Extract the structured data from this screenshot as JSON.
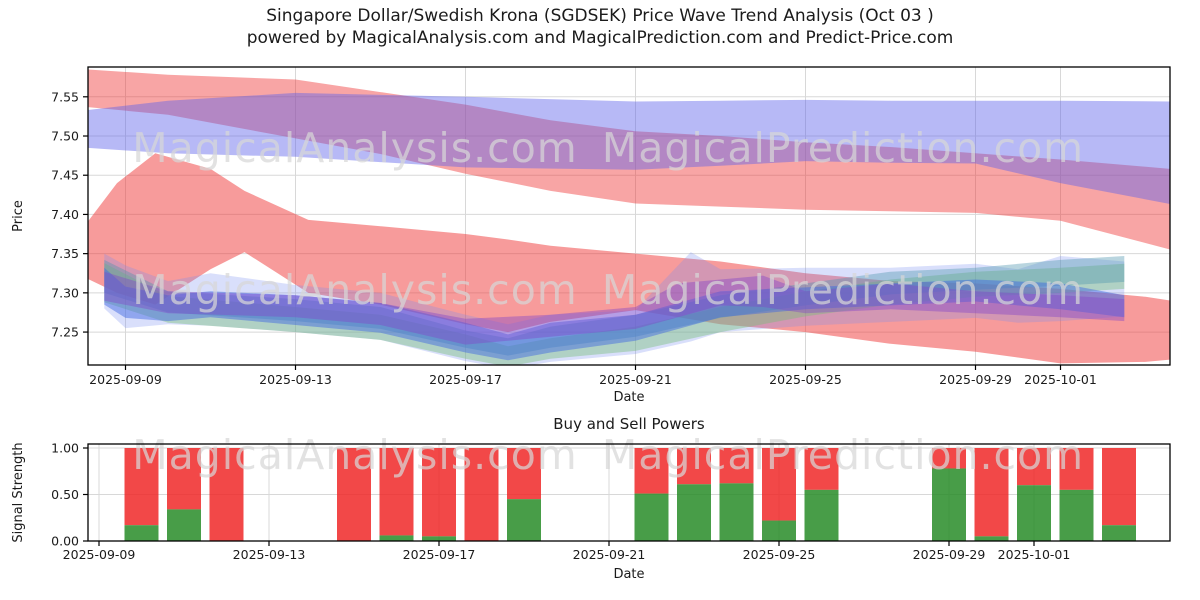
{
  "title": {
    "line1": "Singapore Dollar/Swedish Krona (SGDSEK) Price Wave Trend Analysis (Oct 03 )",
    "line2": "powered by MagicalAnalysis.com and MagicalPrediction.com and Predict-Price.com"
  },
  "watermarks": [
    "MagicalAnalysis.com",
    "MagicalPrediction.com"
  ],
  "watermark_color": "rgba(215,215,215,0.72)",
  "colors": {
    "upper_red_band": "rgba(240,55,55,0.45)",
    "mid_red_band": "rgba(240,55,55,0.50)",
    "upper_blue_band": "rgba(95,100,235,0.45)",
    "cluster_envelope": "rgba(120,140,240,0.28)",
    "cluster_green": "rgba(120,190,120,0.42)",
    "cluster_teal": "rgba(80,150,175,0.40)",
    "cluster_blue": "rgba(65,105,225,0.48)",
    "cluster_violet": "rgba(130,70,200,0.42)",
    "buy_bar": "rgba(40,140,40,0.85)",
    "sell_bar": "rgba(240,40,40,0.85)",
    "grid": "#d8d8d8",
    "spine": "#000000"
  },
  "chart_data": [
    {
      "type": "area",
      "title": "",
      "xlabel": "Date",
      "ylabel": "Price",
      "ylim": [
        7.208,
        7.588
      ],
      "yticks": [
        7.25,
        7.3,
        7.35,
        7.4,
        7.45,
        7.5,
        7.55
      ],
      "x_epoch": "2025-09-08",
      "grid": true,
      "legend": "none",
      "xticks": [
        {
          "d": 1,
          "label": "2025-09-09"
        },
        {
          "d": 5,
          "label": "2025-09-13"
        },
        {
          "d": 9,
          "label": "2025-09-17"
        },
        {
          "d": 13,
          "label": "2025-09-21"
        },
        {
          "d": 17,
          "label": "2025-09-25"
        },
        {
          "d": 21,
          "label": "2025-09-29"
        },
        {
          "d": 23,
          "label": "2025-10-01"
        }
      ],
      "bands": [
        {
          "name": "upper-red-forecast-band",
          "color_key": "upper_red_band",
          "points": [
            [
              0.1,
              7.537,
              7.585
            ],
            [
              2,
              7.527,
              7.578
            ],
            [
              5,
              7.497,
              7.572
            ],
            [
              7,
              7.477,
              7.556
            ],
            [
              9,
              7.452,
              7.54
            ],
            [
              11,
              7.43,
              7.52
            ],
            [
              13,
              7.414,
              7.506
            ],
            [
              15,
              7.41,
              7.5
            ],
            [
              17,
              7.406,
              7.492
            ],
            [
              19,
              7.404,
              7.486
            ],
            [
              21,
              7.402,
              7.478
            ],
            [
              23,
              7.392,
              7.47
            ],
            [
              25.6,
              7.355,
              7.458
            ]
          ]
        },
        {
          "name": "mid-red-wave-band",
          "color_key": "mid_red_band",
          "points": [
            [
              0.1,
              7.318,
              7.39
            ],
            [
              0.8,
              7.3,
              7.44
            ],
            [
              1.7,
              7.285,
              7.478
            ],
            [
              3,
              7.33,
              7.458
            ],
            [
              3.8,
              7.352,
              7.43
            ],
            [
              5.3,
              7.3,
              7.393
            ],
            [
              7,
              7.285,
              7.385
            ],
            [
              9,
              7.26,
              7.375
            ],
            [
              10,
              7.25,
              7.368
            ],
            [
              11,
              7.263,
              7.36
            ],
            [
              13,
              7.278,
              7.35
            ],
            [
              15,
              7.26,
              7.34
            ],
            [
              17,
              7.25,
              7.325
            ],
            [
              19,
              7.235,
              7.315
            ],
            [
              21,
              7.225,
              7.312
            ],
            [
              23,
              7.21,
              7.305
            ],
            [
              25,
              7.212,
              7.295
            ],
            [
              25.6,
              7.215,
              7.29
            ]
          ]
        },
        {
          "name": "upper-blue-forecast-band",
          "color_key": "upper_blue_band",
          "points": [
            [
              0.1,
              7.485,
              7.533
            ],
            [
              2,
              7.478,
              7.545
            ],
            [
              5,
              7.4735,
              7.555
            ],
            [
              9,
              7.46,
              7.55
            ],
            [
              13,
              7.457,
              7.544
            ],
            [
              15,
              7.462,
              7.545
            ],
            [
              17,
              7.468,
              7.546
            ],
            [
              19,
              7.466,
              7.545
            ],
            [
              21,
              7.465,
              7.545
            ],
            [
              23,
              7.44,
              7.545
            ],
            [
              25.6,
              7.413,
              7.544
            ]
          ]
        },
        {
          "name": "cluster-envelope-band",
          "color_key": "cluster_envelope",
          "points": [
            [
              0.5,
              7.28,
              7.35
            ],
            [
              1,
              7.255,
              7.335
            ],
            [
              2,
              7.26,
              7.315
            ],
            [
              3,
              7.258,
              7.325
            ],
            [
              5,
              7.25,
              7.31
            ],
            [
              7,
              7.24,
              7.3
            ],
            [
              9,
              7.213,
              7.272
            ],
            [
              10,
              7.203,
              7.26
            ],
            [
              11,
              7.212,
              7.272
            ],
            [
              13,
              7.222,
              7.278
            ],
            [
              14.3,
              7.238,
              7.352
            ],
            [
              15,
              7.25,
              7.33
            ],
            [
              17,
              7.258,
              7.332
            ],
            [
              19,
              7.263,
              7.332
            ],
            [
              21,
              7.268,
              7.337
            ],
            [
              22,
              7.262,
              7.33
            ],
            [
              23,
              7.264,
              7.347
            ],
            [
              24.5,
              7.27,
              7.34
            ]
          ]
        },
        {
          "name": "cluster-green-band",
          "color_key": "cluster_green",
          "points": [
            [
              0.5,
              7.288,
              7.338
            ],
            [
              2,
              7.262,
              7.296
            ],
            [
              5,
              7.25,
              7.282
            ],
            [
              7,
              7.24,
              7.272
            ],
            [
              9,
              7.216,
              7.247
            ],
            [
              10,
              7.206,
              7.232
            ],
            [
              11,
              7.216,
              7.242
            ],
            [
              13,
              7.226,
              7.257
            ],
            [
              15,
              7.25,
              7.282
            ],
            [
              17,
              7.27,
              7.302
            ],
            [
              19,
              7.285,
              7.317
            ],
            [
              21,
              7.295,
              7.327
            ],
            [
              23,
              7.3,
              7.332
            ],
            [
              24.5,
              7.305,
              7.337
            ]
          ]
        },
        {
          "name": "cluster-teal-band",
          "color_key": "cluster_teal",
          "points": [
            [
              0.5,
              7.3,
              7.342
            ],
            [
              2,
              7.275,
              7.302
            ],
            [
              5,
              7.264,
              7.292
            ],
            [
              7,
              7.254,
              7.282
            ],
            [
              9,
              7.23,
              7.252
            ],
            [
              10,
              7.22,
              7.242
            ],
            [
              11,
              7.23,
              7.257
            ],
            [
              13,
              7.244,
              7.272
            ],
            [
              15,
              7.268,
              7.297
            ],
            [
              17,
              7.284,
              7.312
            ],
            [
              19,
              7.298,
              7.327
            ],
            [
              21,
              7.304,
              7.332
            ],
            [
              23,
              7.309,
              7.342
            ],
            [
              24.5,
              7.314,
              7.347
            ]
          ]
        },
        {
          "name": "cluster-blue-band",
          "color_key": "cluster_blue",
          "points": [
            [
              0.5,
              7.285,
              7.332
            ],
            [
              1,
              7.268,
              7.308
            ],
            [
              2,
              7.264,
              7.297
            ],
            [
              3,
              7.269,
              7.302
            ],
            [
              5,
              7.259,
              7.297
            ],
            [
              7,
              7.249,
              7.287
            ],
            [
              9,
              7.224,
              7.262
            ],
            [
              10,
              7.214,
              7.247
            ],
            [
              11,
              7.224,
              7.262
            ],
            [
              13,
              7.239,
              7.272
            ],
            [
              15,
              7.269,
              7.302
            ],
            [
              17,
              7.279,
              7.307
            ],
            [
              19,
              7.284,
              7.312
            ],
            [
              21,
              7.289,
              7.317
            ],
            [
              23,
              7.279,
              7.312
            ],
            [
              24.5,
              7.269,
              7.297
            ]
          ]
        },
        {
          "name": "cluster-violet-band",
          "color_key": "cluster_violet",
          "points": [
            [
              0.5,
              7.29,
              7.327
            ],
            [
              2,
              7.274,
              7.302
            ],
            [
              5,
              7.269,
              7.297
            ],
            [
              7,
              7.259,
              7.287
            ],
            [
              9,
              7.234,
              7.267
            ],
            [
              11,
              7.244,
              7.272
            ],
            [
              13,
              7.254,
              7.282
            ],
            [
              14,
              7.269,
              7.312
            ],
            [
              15,
              7.284,
              7.317
            ],
            [
              16,
              7.282,
              7.322
            ],
            [
              17,
              7.274,
              7.302
            ],
            [
              19,
              7.279,
              7.312
            ],
            [
              21,
              7.274,
              7.302
            ],
            [
              23,
              7.269,
              7.297
            ],
            [
              24.5,
              7.264,
              7.292
            ]
          ]
        }
      ]
    },
    {
      "type": "bar",
      "stacked": true,
      "title": "Buy and Sell Powers",
      "xlabel": "Date",
      "ylabel": "Signal Strength",
      "ylim": [
        0,
        1.043
      ],
      "yticks": [
        0.0,
        0.5,
        1.0
      ],
      "x_epoch": "2025-09-09",
      "grid": true,
      "legend": "none",
      "xticks": [
        {
          "d": 0,
          "label": "2025-09-09"
        },
        {
          "d": 4,
          "label": "2025-09-13"
        },
        {
          "d": 8,
          "label": "2025-09-17"
        },
        {
          "d": 12,
          "label": "2025-09-21"
        },
        {
          "d": 16,
          "label": "2025-09-25"
        },
        {
          "d": 20,
          "label": "2025-09-29"
        },
        {
          "d": 22,
          "label": "2025-10-01"
        }
      ],
      "categories": [
        "2025-09-10",
        "2025-09-11",
        "2025-09-12",
        "2025-09-15",
        "2025-09-16",
        "2025-09-17",
        "2025-09-18",
        "2025-09-19",
        "2025-09-22",
        "2025-09-23",
        "2025-09-24",
        "2025-09-25",
        "2025-09-26",
        "2025-09-29",
        "2025-09-30",
        "2025-10-01",
        "2025-10-02",
        "2025-10-03"
      ],
      "series": [
        {
          "name": "Buy Power",
          "color_key": "buy_bar",
          "values": [
            0.17,
            0.34,
            0.0,
            0.0,
            0.06,
            0.05,
            0.0,
            0.45,
            0.51,
            0.61,
            0.62,
            0.22,
            0.55,
            0.78,
            0.05,
            0.6,
            0.55,
            0.17
          ]
        },
        {
          "name": "Sell Power",
          "color_key": "sell_bar",
          "values": [
            0.83,
            0.66,
            1.0,
            1.0,
            0.94,
            0.95,
            1.0,
            0.55,
            0.49,
            0.39,
            0.38,
            0.78,
            0.45,
            0.22,
            0.95,
            0.4,
            0.45,
            0.83
          ]
        }
      ]
    }
  ]
}
